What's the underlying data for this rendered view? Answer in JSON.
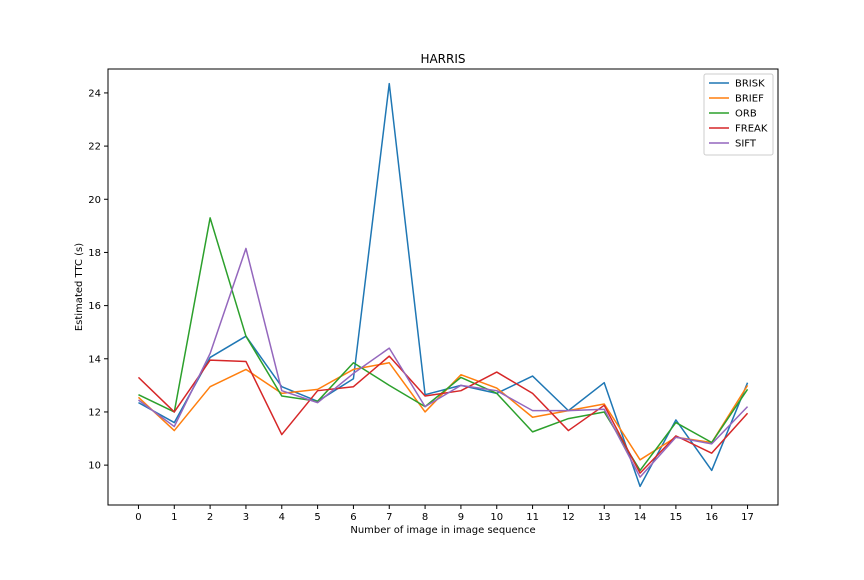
{
  "chart_data": {
    "type": "line",
    "title": "HARRIS",
    "xlabel": "Number of image in image sequence",
    "ylabel": "Estimated TTC (s)",
    "x": [
      0,
      1,
      2,
      3,
      4,
      5,
      6,
      7,
      8,
      9,
      10,
      11,
      12,
      13,
      14,
      15,
      16,
      17
    ],
    "xlim": [
      -0.85,
      17.85
    ],
    "ylim": [
      8.5,
      24.9
    ],
    "yticks": [
      10,
      12,
      14,
      16,
      18,
      20,
      22,
      24
    ],
    "grid": false,
    "legend_position": "top-right",
    "series": [
      {
        "name": "BRISK",
        "color": "#1f77b4",
        "values": [
          12.35,
          11.6,
          14.05,
          14.85,
          12.95,
          12.4,
          13.25,
          24.35,
          12.65,
          13.0,
          12.7,
          13.35,
          12.05,
          13.1,
          9.2,
          11.7,
          9.8,
          13.1
        ]
      },
      {
        "name": "BRIEF",
        "color": "#ff7f0e",
        "values": [
          12.55,
          11.3,
          12.95,
          13.6,
          12.7,
          12.85,
          13.6,
          13.85,
          12.0,
          13.4,
          12.9,
          11.8,
          12.05,
          12.3,
          10.2,
          11.05,
          10.85,
          13.0
        ]
      },
      {
        "name": "ORB",
        "color": "#2ca02c",
        "values": [
          12.65,
          12.0,
          19.3,
          14.85,
          12.6,
          12.4,
          13.85,
          13.0,
          12.2,
          13.3,
          12.7,
          11.25,
          11.75,
          12.0,
          9.8,
          11.6,
          10.85,
          12.85
        ]
      },
      {
        "name": "FREAK",
        "color": "#d62728",
        "values": [
          13.3,
          12.0,
          13.95,
          13.9,
          11.15,
          12.8,
          12.95,
          14.1,
          12.6,
          12.8,
          13.5,
          12.7,
          11.3,
          12.25,
          9.7,
          11.1,
          10.45,
          11.95
        ]
      },
      {
        "name": "SIFT",
        "color": "#9467bd",
        "values": [
          12.45,
          11.45,
          14.2,
          18.15,
          12.8,
          12.35,
          13.45,
          14.4,
          12.2,
          13.0,
          12.8,
          12.05,
          12.05,
          12.1,
          9.55,
          11.05,
          10.8,
          12.2
        ]
      }
    ]
  }
}
